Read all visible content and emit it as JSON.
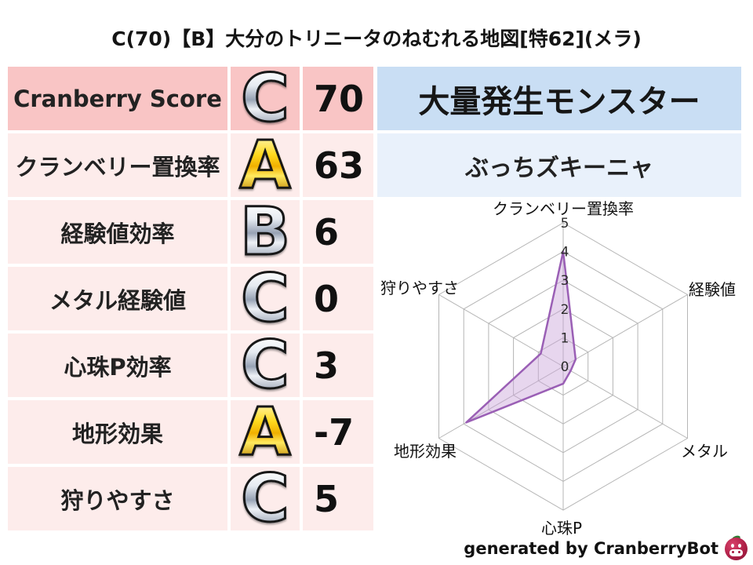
{
  "title": "C(70)【B】大分のトリニータのねむれる地図[特62](メラ)",
  "stats_table": {
    "rows": [
      {
        "label": "Cranberry Score",
        "rank": "C",
        "value": "70",
        "highlight": true
      },
      {
        "label": "クランベリー置換率",
        "rank": "A",
        "value": "63"
      },
      {
        "label": "経験値効率",
        "rank": "B",
        "value": "6"
      },
      {
        "label": "メタル経験値",
        "rank": "C",
        "value": "0"
      },
      {
        "label": "心珠P効率",
        "rank": "C",
        "value": "3"
      },
      {
        "label": "地形効果",
        "rank": "A",
        "value": "-7"
      },
      {
        "label": "狩りやすさ",
        "rank": "C",
        "value": "5"
      }
    ]
  },
  "rank_styles": {
    "A": "gold",
    "B": "silver",
    "C": "silver"
  },
  "monster_panel": {
    "header": "大量発生モンスター",
    "name": "ぶっちズキーニャ"
  },
  "chart_data": {
    "type": "radar",
    "categories": [
      "クランベリー置換率",
      "経験値",
      "メタル",
      "心珠P",
      "地形効果",
      "狩りやすさ"
    ],
    "values": [
      4,
      0.5,
      0.3,
      0.6,
      3.9,
      0.9
    ],
    "ticks": [
      0,
      1,
      2,
      3,
      4,
      5
    ],
    "rmax": 5,
    "grid": true,
    "legend": "none",
    "fill_color": "#c9a3d9",
    "stroke_color": "#9a5fb5"
  },
  "footer": {
    "credit": "generated by CranberryBot",
    "icon": "cranberry-icon"
  },
  "colors": {
    "pink_strong": "#f9c5c5",
    "pink_light": "#fdeceb",
    "blue_strong": "#c9def4",
    "blue_light": "#e9f1fb",
    "grid_gray": "#b5b5b5",
    "radar_fill": "#c9a3d9",
    "radar_stroke": "#9a5fb5",
    "gold": "#f0b000",
    "silver": "#97a2b4"
  }
}
